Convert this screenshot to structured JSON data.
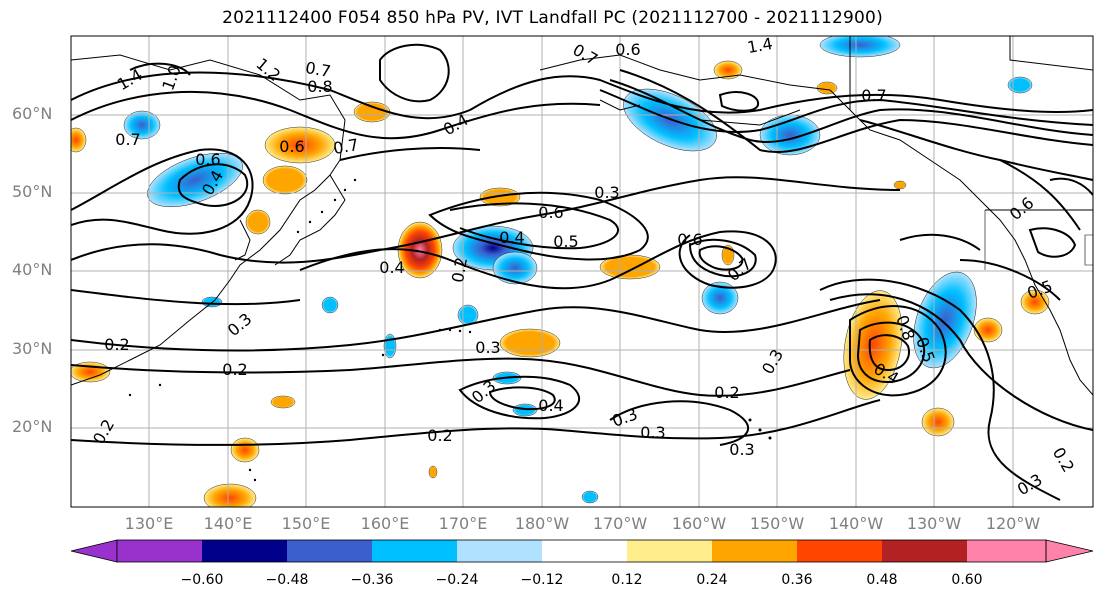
{
  "title": "2021112400 F054 850 hPa PV, IVT Landfall PC (2021112700 - 2021112900)",
  "lat_labels": [
    "60°N",
    "50°N",
    "40°N",
    "30°N",
    "20°N"
  ],
  "lon_labels": [
    "130°E",
    "140°E",
    "150°E",
    "160°E",
    "170°E",
    "180°W",
    "170°W",
    "160°W",
    "150°W",
    "140°W",
    "130°W",
    "120°W"
  ],
  "colorbar": {
    "ticks": [
      "−0.60",
      "−0.48",
      "−0.36",
      "−0.24",
      "−0.12",
      "0.12",
      "0.24",
      "0.36",
      "0.48",
      "0.60"
    ],
    "colors": [
      "#9932cc",
      "#00008b",
      "#3a5fcd",
      "#00bfff",
      "#b0e2ff",
      "#ffffff",
      "#ffec8b",
      "#ffa500",
      "#ff4500",
      "#b22222",
      "#ff82ab"
    ]
  },
  "contour_labels": [
    "1.4",
    "1.2",
    "1.0",
    "0.7",
    "0.8",
    "0.6",
    "0.7",
    "0.4",
    "0.6",
    "0.7",
    "0.4",
    "0.3",
    "0.6",
    "0.4",
    "0.5",
    "0.6",
    "0.7",
    "0.4",
    "0.2",
    "0.3",
    "0.3",
    "0.2",
    "0.3",
    "0.4",
    "0.2",
    "0.3",
    "0.3",
    "0.2",
    "0.3",
    "0.2",
    "0.2",
    "0.3",
    "0.8",
    "0.5",
    "0.4",
    "0.5",
    "0.6",
    "0.3",
    "0.2",
    "1.4",
    "0.7",
    "0.6",
    "0.7"
  ]
}
